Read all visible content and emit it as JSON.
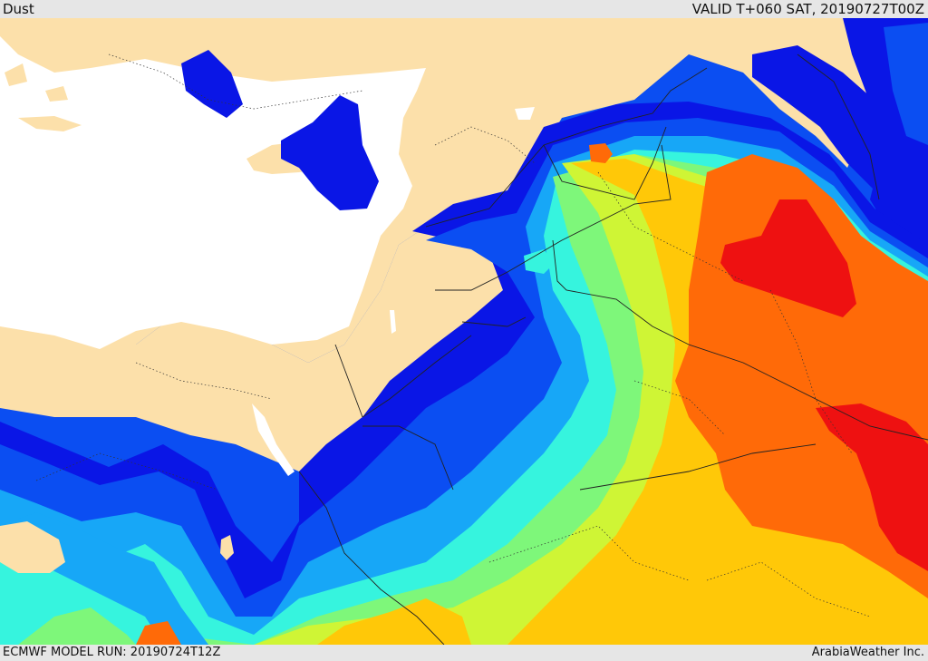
{
  "header": {
    "product": "Dust",
    "valid": "VALID T+060 SAT, 20190727T00Z"
  },
  "footer": {
    "model_run": "ECMWF MODEL RUN: 20190724T12Z",
    "credit": "ArabiaWeather Inc."
  },
  "legend_colors": {
    "land": "#fce0aa",
    "sea": "#ffffff",
    "level_1": "#0a16e6",
    "level_2": "#0b4ef2",
    "level_3": "#17a7f7",
    "level_4": "#36f4de",
    "level_5": "#7ef77a",
    "level_6": "#cff535",
    "level_7": "#ffc808",
    "level_8": "#ff6a08",
    "level_9": "#ee1111"
  }
}
